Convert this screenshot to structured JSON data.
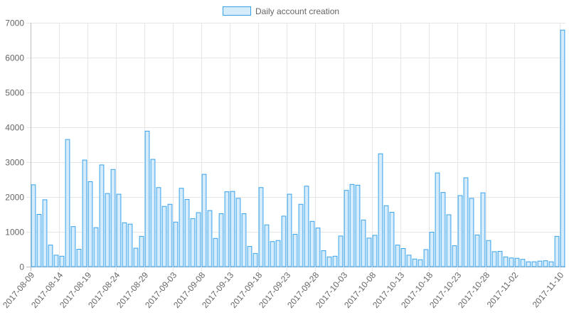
{
  "chart_data": {
    "type": "bar",
    "legend": {
      "label": "Daily account creation",
      "position": "top"
    },
    "series": [
      {
        "name": "Daily account creation",
        "values": [
          2350,
          1500,
          1920,
          620,
          330,
          300,
          3650,
          1150,
          500,
          3060,
          2440,
          1120,
          2920,
          2100,
          2790,
          2080,
          1260,
          1220,
          530,
          870,
          3890,
          3080,
          2270,
          1730,
          1790,
          1280,
          2250,
          1930,
          1380,
          1550,
          2650,
          1610,
          810,
          1520,
          2150,
          2160,
          1960,
          1520,
          580,
          380,
          2270,
          1200,
          720,
          750,
          1450,
          2080,
          930,
          1790,
          2310,
          1300,
          1110,
          460,
          280,
          300,
          880,
          2190,
          2360,
          2340,
          1340,
          820,
          900,
          3240,
          1750,
          1560,
          620,
          520,
          330,
          220,
          200,
          490,
          990,
          2690,
          2130,
          1490,
          600,
          2040,
          2550,
          1960,
          910,
          2120,
          750,
          430,
          440,
          280,
          250,
          240,
          210,
          140,
          140,
          160,
          170,
          140,
          870,
          6790
        ]
      }
    ],
    "x_tick_labels": [
      "2017-08-09",
      "2017-08-14",
      "2017-08-19",
      "2017-08-24",
      "2017-08-29",
      "2017-09-03",
      "2017-09-08",
      "2017-09-13",
      "2017-09-18",
      "2017-09-23",
      "2017-09-28",
      "2017-10-03",
      "2017-10-08",
      "2017-10-13",
      "2017-10-18",
      "2017-10-23",
      "2017-10-28",
      "2017-11-02",
      "2017-11-10"
    ],
    "y_ticks": [
      0,
      1000,
      2000,
      3000,
      4000,
      5000,
      6000,
      7000
    ],
    "ylim": [
      0,
      7000
    ],
    "grid": true,
    "colors": {
      "bar_fill": "#d7ecfb",
      "bar_stroke": "#36a2eb",
      "grid": "#e5e5e5",
      "axis": "#bdbdbd",
      "text": "#666666"
    }
  }
}
